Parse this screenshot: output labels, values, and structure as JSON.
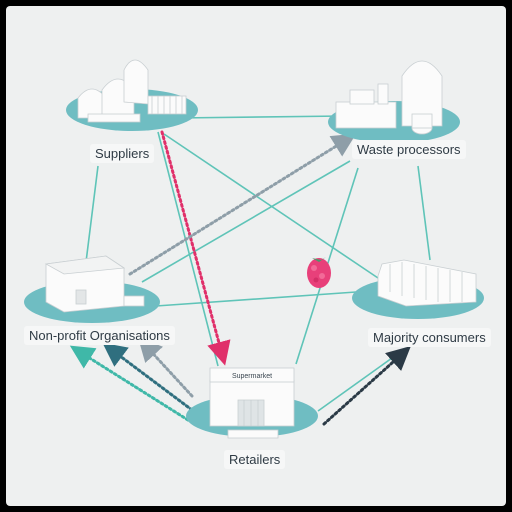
{
  "colors": {
    "background": "#eef0f0",
    "platform": "#6fbdc2",
    "network_line": "#5fc4b8",
    "flow_pink": "#e0306a",
    "flow_grey": "#8e9ea8",
    "flow_teal": "#3fb8a8",
    "flow_blue": "#2f6f7f",
    "flow_dark": "#2b3a46",
    "berry": "#e8407a"
  },
  "nodes": {
    "suppliers": {
      "label": "Suppliers"
    },
    "waste": {
      "label": "Waste processors"
    },
    "nonprofit": {
      "label": "Non-profit Organisations"
    },
    "majority": {
      "label": "Majority consumers"
    },
    "retailers": {
      "label": "Retailers",
      "sign": "Supermarket"
    }
  },
  "icons": {
    "suppliers": "greenhouse-farm-icon",
    "waste": "processing-plant-icon",
    "nonprofit": "warehouse-icon",
    "majority": "row-houses-icon",
    "retailers": "supermarket-icon",
    "center": "raspberry-icon"
  }
}
